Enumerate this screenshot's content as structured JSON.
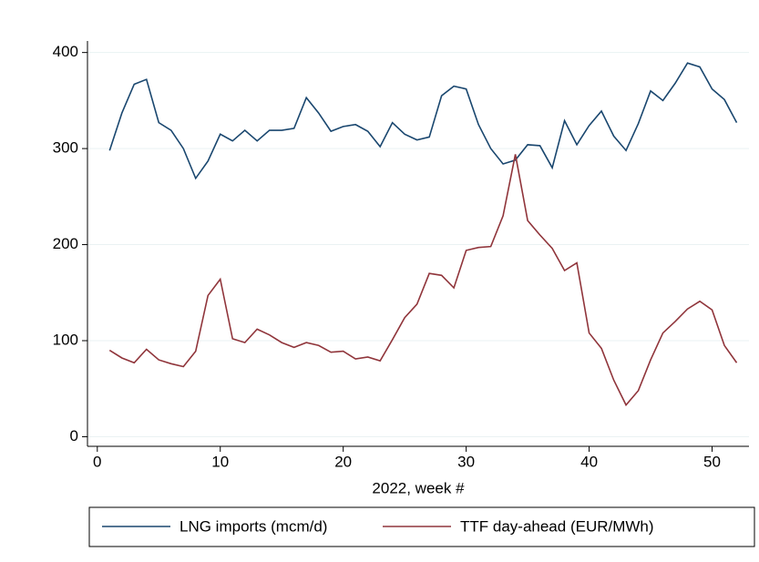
{
  "chart_data": {
    "type": "line",
    "x_label": "2022, week #",
    "x": [
      1,
      2,
      3,
      4,
      5,
      6,
      7,
      8,
      9,
      10,
      11,
      12,
      13,
      14,
      15,
      16,
      17,
      18,
      19,
      20,
      21,
      22,
      23,
      24,
      25,
      26,
      27,
      28,
      29,
      30,
      31,
      32,
      33,
      34,
      35,
      36,
      37,
      38,
      39,
      40,
      41,
      42,
      43,
      44,
      45,
      46,
      47,
      48,
      49,
      50,
      51,
      52
    ],
    "series": [
      {
        "name": "LNG imports (mcm/d)",
        "color": "#1a476f",
        "values": [
          298,
          337,
          367,
          372,
          327,
          319,
          300,
          269,
          287,
          315,
          308,
          319,
          308,
          319,
          319,
          321,
          353,
          337,
          318,
          323,
          325,
          318,
          302,
          327,
          315,
          309,
          312,
          355,
          365,
          362,
          325,
          300,
          284,
          288,
          304,
          303,
          280,
          329,
          304,
          324,
          339,
          313,
          298,
          326,
          360,
          350,
          368,
          389,
          385,
          362,
          351,
          327
        ]
      },
      {
        "name": "TTF day-ahead (EUR/MWh)",
        "color": "#90353b",
        "values": [
          90,
          82,
          77,
          91,
          80,
          76,
          73,
          89,
          147,
          164,
          102,
          98,
          112,
          106,
          98,
          93,
          98,
          95,
          88,
          89,
          81,
          83,
          79,
          101,
          124,
          138,
          170,
          168,
          155,
          194,
          197,
          198,
          230,
          294,
          225,
          210,
          196,
          173,
          181,
          108,
          92,
          59,
          33,
          48,
          80,
          108,
          120,
          133,
          141,
          132,
          95,
          77
        ]
      }
    ],
    "xlim": [
      -0.8,
      53
    ],
    "xticks": [
      0,
      10,
      20,
      30,
      40,
      50
    ],
    "ylim": [
      -10,
      412
    ],
    "yticks": [
      0,
      100,
      200,
      300,
      400
    ],
    "grid": true,
    "legend": "bottom"
  }
}
